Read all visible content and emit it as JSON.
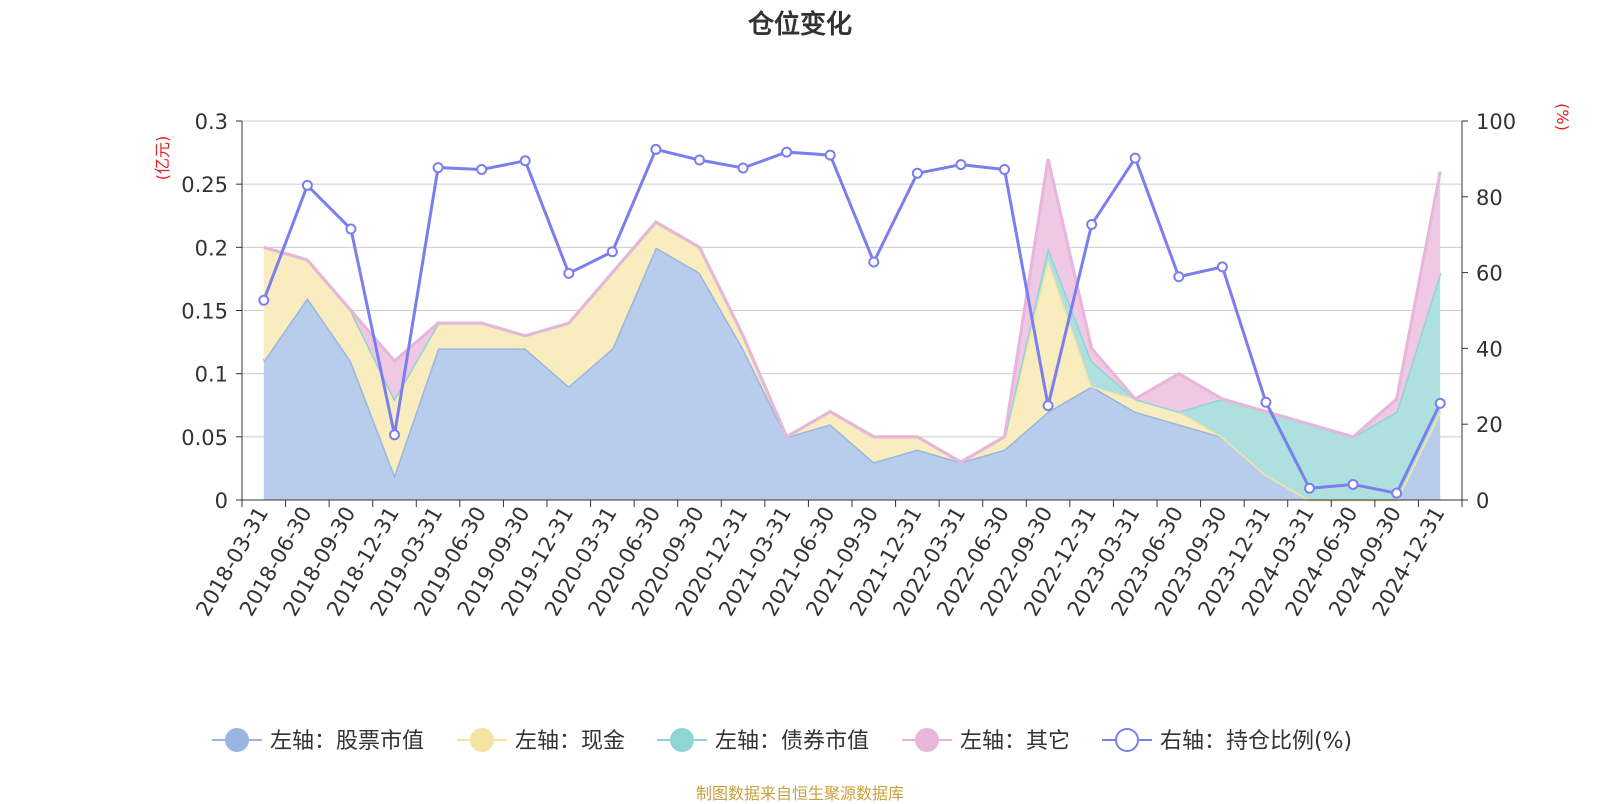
{
  "chart_data": {
    "type": "area",
    "title": "仓位变化",
    "left_axis_unit": "(亿元)",
    "right_axis_unit": "(%)",
    "left_ylim": [
      0,
      0.3
    ],
    "left_ticks": [
      "0",
      "0.05",
      "0.1",
      "0.15",
      "0.2",
      "0.25",
      "0.3"
    ],
    "right_ylim": [
      0,
      100
    ],
    "right_ticks": [
      "0",
      "20",
      "40",
      "60",
      "80",
      "100"
    ],
    "categories": [
      "2018-03-31",
      "2018-06-30",
      "2018-09-30",
      "2018-12-31",
      "2019-03-31",
      "2019-06-30",
      "2019-09-30",
      "2019-12-31",
      "2020-03-31",
      "2020-06-30",
      "2020-09-30",
      "2020-12-31",
      "2021-03-31",
      "2021-06-30",
      "2021-09-30",
      "2021-12-31",
      "2022-03-31",
      "2022-06-30",
      "2022-09-30",
      "2022-12-31",
      "2023-03-31",
      "2023-06-30",
      "2023-09-30",
      "2023-12-31",
      "2024-03-31",
      "2024-06-30",
      "2024-09-30",
      "2024-12-31"
    ],
    "stacked_series": [
      {
        "name": "左轴：股票市值",
        "color": "#9ab5e0",
        "fill": "#b8cdeb",
        "values": [
          0.11,
          0.16,
          0.11,
          0.02,
          0.12,
          0.12,
          0.12,
          0.09,
          0.12,
          0.2,
          0.18,
          0.12,
          0.05,
          0.06,
          0.03,
          0.04,
          0.03,
          0.04,
          0.07,
          0.09,
          0.07,
          0.06,
          0.05,
          0.04,
          0.03,
          0.02,
          0.01,
          0.07
        ]
      },
      {
        "name": "左轴：现金",
        "color": "#f6e5a2",
        "fill": "#f9edbf",
        "values": [
          0.09,
          0.03,
          0.04,
          0.06,
          0.02,
          0.02,
          0.01,
          0.05,
          0.06,
          0.02,
          0.02,
          0.01,
          0.0,
          0.01,
          0.02,
          0.01,
          0.0,
          0.01,
          0.12,
          0.0,
          0.01,
          0.01,
          0.0,
          -0.02,
          -0.03,
          -0.02,
          -0.01,
          0.0
        ]
      },
      {
        "name": "左轴：债券市值",
        "color": "#8ed5d3",
        "fill": "#aee0e0",
        "values": [
          0,
          0,
          0,
          0,
          0,
          0,
          0,
          0,
          0,
          0,
          0,
          0,
          0,
          0,
          0,
          0,
          0,
          0,
          0.01,
          0.02,
          0.0,
          0.0,
          0.03,
          0.05,
          0.06,
          0.05,
          0.07,
          0.11
        ]
      },
      {
        "name": "左轴：其它",
        "color": "#e8b5db",
        "fill": "#efc8e4",
        "values": [
          0,
          0,
          0,
          0.03,
          0,
          0,
          0,
          0,
          0,
          0,
          0,
          0,
          0,
          0,
          0,
          0,
          0,
          0,
          0.07,
          0.01,
          0.0,
          0.03,
          0.0,
          0.0,
          0.0,
          0.0,
          0.01,
          0.08
        ]
      }
    ],
    "line_series": {
      "name": "右轴：持仓比例(%)",
      "color": "#7b7fee",
      "values": [
        52.7,
        83.0,
        71.5,
        17.2,
        87.7,
        87.2,
        89.5,
        59.8,
        65.5,
        92.5,
        89.7,
        87.6,
        91.8,
        91.0,
        62.8,
        86.2,
        88.5,
        87.2,
        24.9,
        72.7,
        90.2,
        58.9,
        61.5,
        25.8,
        3.1,
        4.1,
        1.8,
        25.5
      ]
    },
    "legend_position": "bottom-center",
    "source": "制图数据来自恒生聚源数据库"
  }
}
